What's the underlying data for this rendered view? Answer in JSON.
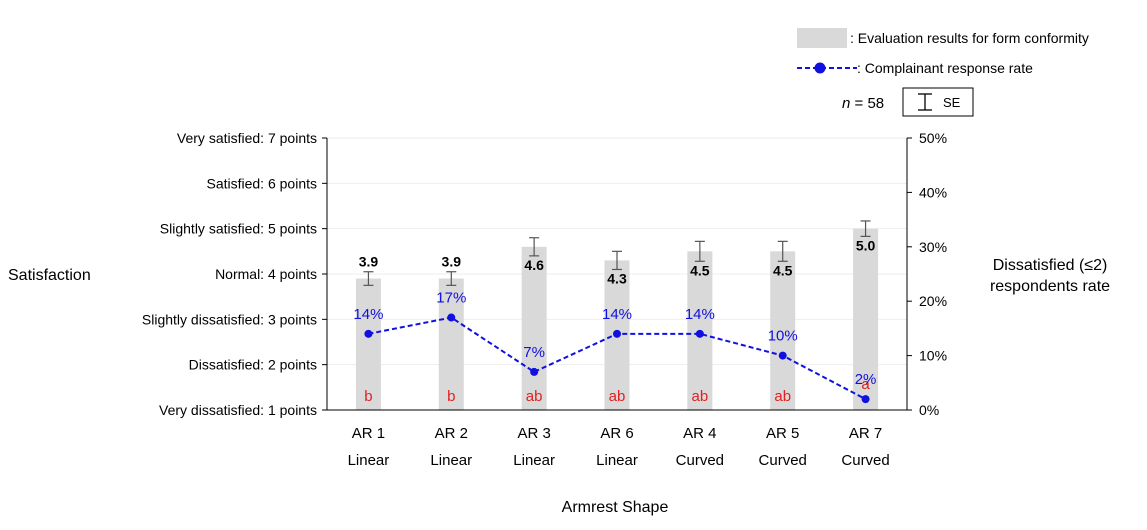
{
  "chart_data": {
    "type": "bar",
    "categories": [
      "AR 1",
      "AR 2",
      "AR 3",
      "AR 6",
      "AR 4",
      "AR 5",
      "AR 7"
    ],
    "category_shapes": [
      "Linear",
      "Linear",
      "Linear",
      "Linear",
      "Curved",
      "Curved",
      "Curved"
    ],
    "xlabel": "Armrest Shape",
    "ylabel_left": "Satisfaction",
    "ylabel_right_line1": "Dissatisfied (≤2)",
    "ylabel_right_line2": "respondents rate",
    "y_left_ticks": [
      {
        "value": 1,
        "label": "Very dissatisfied: 1 points"
      },
      {
        "value": 2,
        "label": "Dissatisfied: 2 points"
      },
      {
        "value": 3,
        "label": "Slightly dissatisfied: 3 points"
      },
      {
        "value": 4,
        "label": "Normal: 4 points"
      },
      {
        "value": 5,
        "label": "Slightly satisfied: 5 points"
      },
      {
        "value": 6,
        "label": "Satisfied: 6 points"
      },
      {
        "value": 7,
        "label": "Very satisfied: 7 points"
      }
    ],
    "y_left_lim": [
      1,
      7
    ],
    "y_right_ticks": [
      {
        "value": 0,
        "label": "0%"
      },
      {
        "value": 10,
        "label": "10%"
      },
      {
        "value": 20,
        "label": "20%"
      },
      {
        "value": 30,
        "label": "30%"
      },
      {
        "value": 40,
        "label": "40%"
      },
      {
        "value": 50,
        "label": "50%"
      }
    ],
    "y_right_lim": [
      0,
      50
    ],
    "series": [
      {
        "name": ": Evaluation results for form conformity",
        "type": "bar",
        "values": [
          3.9,
          3.9,
          4.6,
          4.3,
          4.5,
          4.5,
          5.0
        ],
        "value_labels": [
          "3.9",
          "3.9",
          "4.6",
          "4.3",
          "4.5",
          "4.5",
          "5.0"
        ],
        "se": [
          0.15,
          0.15,
          0.2,
          0.2,
          0.22,
          0.22,
          0.17
        ],
        "significance": [
          "b",
          "b",
          "ab",
          "ab",
          "ab",
          "ab",
          "a"
        ],
        "color": "#d9d9d9"
      },
      {
        "name": ": Complainant response rate",
        "type": "line",
        "axis": "right",
        "values": [
          14,
          17,
          7,
          14,
          14,
          10,
          2
        ],
        "value_labels": [
          "14%",
          "17%",
          "7%",
          "14%",
          "14%",
          "10%",
          "2%"
        ],
        "color": "#1010e0"
      }
    ],
    "sample_size_label": "n",
    "sample_size_value": " = 58",
    "se_legend_label": "SE",
    "grid": true,
    "legend_position": "top-right",
    "colors": {
      "bar": "#d9d9d9",
      "line": "#1010e0",
      "significance": "#e02020",
      "axis": "#000000",
      "grid": "#eeeeee"
    }
  }
}
